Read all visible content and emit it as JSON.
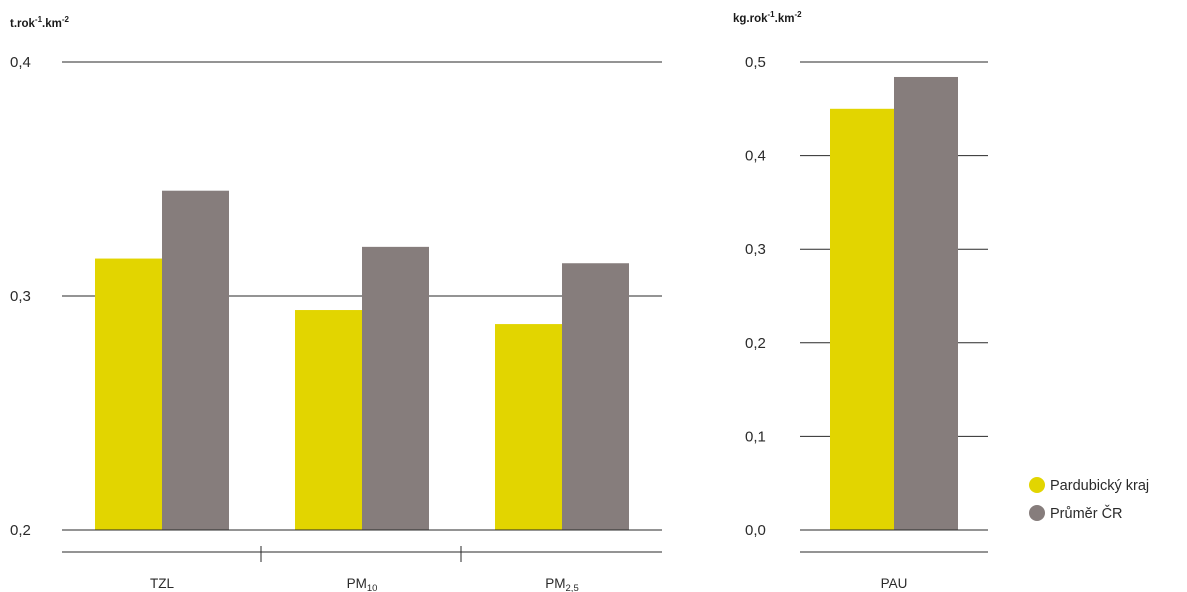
{
  "chart_data": [
    {
      "type": "bar",
      "ylabel": "t.rok",
      "ylabel_sup1": "-1",
      "ylabel_mid": ".km",
      "ylabel_sup2": "-2",
      "ylim": [
        0.2,
        0.4
      ],
      "yticks": [
        {
          "value": 0.2,
          "label": "0,2"
        },
        {
          "value": 0.3,
          "label": "0,3"
        },
        {
          "value": 0.4,
          "label": "0,4"
        }
      ],
      "grid": true,
      "categories": [
        {
          "base": "TZL",
          "sub": ""
        },
        {
          "base": "PM",
          "sub": "10"
        },
        {
          "base": "PM",
          "sub": "2,5"
        }
      ],
      "series": [
        {
          "name": "Pardubický kraj",
          "color": "#e2d500",
          "values": [
            0.316,
            0.294,
            0.288
          ]
        },
        {
          "name": "Průměr ČR",
          "color": "#867d7c",
          "values": [
            0.345,
            0.321,
            0.314
          ]
        }
      ]
    },
    {
      "type": "bar",
      "ylabel": "kg.rok",
      "ylabel_sup1": "-1",
      "ylabel_mid": ".km",
      "ylabel_sup2": "-2",
      "ylim": [
        0.0,
        0.5
      ],
      "yticks": [
        {
          "value": 0.0,
          "label": "0,0"
        },
        {
          "value": 0.1,
          "label": "0,1"
        },
        {
          "value": 0.2,
          "label": "0,2"
        },
        {
          "value": 0.3,
          "label": "0,3"
        },
        {
          "value": 0.4,
          "label": "0,4"
        },
        {
          "value": 0.5,
          "label": "0,5"
        }
      ],
      "grid": true,
      "categories": [
        {
          "base": "PAU",
          "sub": ""
        }
      ],
      "series": [
        {
          "name": "Pardubický kraj",
          "color": "#e2d500",
          "values": [
            0.45
          ]
        },
        {
          "name": "Průměr ČR",
          "color": "#867d7c",
          "values": [
            0.484
          ]
        }
      ]
    }
  ],
  "legend": {
    "placement": "bottom-right",
    "items": [
      {
        "label": "Pardubický kraj",
        "color": "#e2d500"
      },
      {
        "label": "Průměr ČR",
        "color": "#867d7c"
      }
    ]
  }
}
